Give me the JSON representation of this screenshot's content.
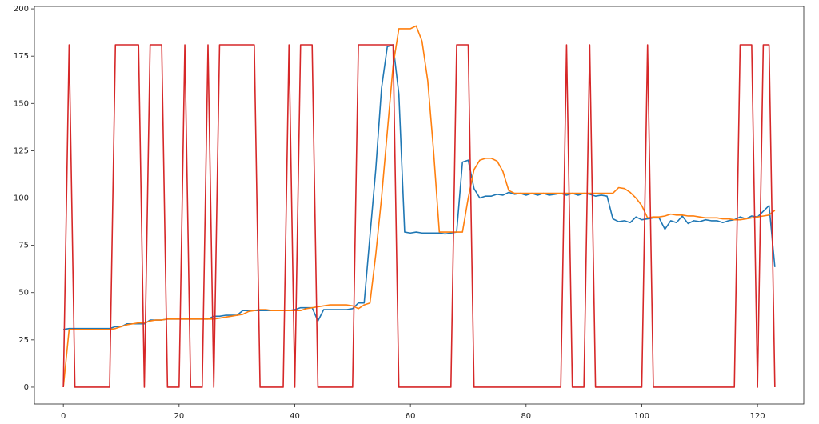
{
  "chart_data": {
    "type": "line",
    "x": [
      0,
      1,
      2,
      3,
      4,
      5,
      6,
      7,
      8,
      9,
      10,
      11,
      12,
      13,
      14,
      15,
      16,
      17,
      18,
      19,
      20,
      21,
      22,
      23,
      24,
      25,
      26,
      27,
      28,
      29,
      30,
      31,
      32,
      33,
      34,
      35,
      36,
      37,
      38,
      39,
      40,
      41,
      42,
      43,
      44,
      45,
      46,
      47,
      48,
      49,
      50,
      51,
      52,
      53,
      54,
      55,
      56,
      57,
      58,
      59,
      60,
      61,
      62,
      63,
      64,
      65,
      66,
      67,
      68,
      69,
      70,
      71,
      72,
      73,
      74,
      75,
      76,
      77,
      78,
      79,
      80,
      81,
      82,
      83,
      84,
      85,
      86,
      87,
      88,
      89,
      90,
      91,
      92,
      93,
      94,
      95,
      96,
      97,
      98,
      99,
      100,
      101,
      102,
      103,
      104,
      105,
      106,
      107,
      108,
      109,
      110,
      111,
      112,
      113,
      114,
      115,
      116,
      117,
      118,
      119,
      120,
      121,
      122,
      123
    ],
    "series": [
      {
        "color": "#1f77b4",
        "values": [
          30.5,
          31,
          31,
          31,
          31,
          31,
          31,
          31,
          31,
          32,
          32,
          33.5,
          33.5,
          33.5,
          33.5,
          35.5,
          35.5,
          35.5,
          36,
          36,
          36,
          36,
          36,
          36,
          36,
          36,
          37.5,
          37.5,
          38,
          38,
          38,
          40.5,
          40.5,
          40.5,
          40.5,
          40.5,
          40.5,
          40.5,
          40.5,
          40.5,
          41,
          42,
          42,
          42,
          35,
          41,
          41,
          41,
          41,
          41,
          41.5,
          44.5,
          44.5,
          80,
          115,
          158,
          180,
          181,
          155,
          82,
          81.5,
          82,
          81.5,
          81.5,
          81.5,
          81.5,
          81,
          81.5,
          82,
          119,
          120,
          105,
          100,
          101,
          101,
          102,
          101.5,
          103,
          102,
          102.5,
          101.5,
          102.5,
          101.5,
          102.5,
          101.5,
          102,
          102.5,
          101.5,
          102.5,
          101.5,
          102.5,
          102,
          101,
          101.5,
          101,
          89,
          87.5,
          88,
          87,
          90,
          88.5,
          89,
          89.5,
          89.5,
          83.5,
          88,
          87,
          90.5,
          86.5,
          88,
          87.5,
          88.5,
          88,
          88,
          87,
          88,
          88.5,
          90,
          89,
          90.5,
          90,
          93,
          96,
          63.5
        ]
      },
      {
        "color": "#ff7f0e",
        "values": [
          0,
          30.5,
          30.5,
          30.5,
          30.5,
          30.5,
          30.5,
          30.5,
          30.5,
          31,
          32,
          33,
          33.5,
          34,
          34,
          35,
          35.5,
          35.5,
          36,
          36,
          36,
          36,
          36,
          36,
          36,
          36,
          36,
          36.5,
          37,
          37.5,
          38,
          38.5,
          40,
          40.5,
          41,
          41,
          40.5,
          40.5,
          40.5,
          40.5,
          40.5,
          40.5,
          41.5,
          42,
          42.5,
          43,
          43.5,
          43.5,
          43.5,
          43.5,
          43,
          41.5,
          43.5,
          44.5,
          70,
          100,
          135,
          170,
          189.5,
          189.5,
          189.5,
          191,
          183,
          162,
          125,
          82,
          82,
          82,
          82,
          82,
          100,
          115,
          120,
          121,
          121,
          119.5,
          114,
          104,
          102.5,
          102.5,
          102.5,
          102.5,
          102.5,
          102.5,
          102.5,
          102.5,
          102.5,
          102.5,
          102.5,
          102.5,
          102.5,
          102.5,
          102.5,
          102.5,
          102.5,
          102.5,
          105.5,
          105,
          103,
          100,
          96,
          89.5,
          90,
          90,
          90.5,
          91.5,
          91,
          91,
          90.5,
          90.5,
          90,
          89.5,
          89.5,
          89.5,
          89,
          89,
          88.5,
          88.5,
          89,
          89.5,
          90,
          90.5,
          91,
          93.5
        ]
      },
      {
        "color": "#d62728",
        "values": [
          0,
          181,
          0,
          0,
          0,
          0,
          0,
          0,
          0,
          181,
          181,
          181,
          181,
          181,
          0,
          181,
          181,
          181,
          0,
          0,
          0,
          181,
          0,
          0,
          0,
          181,
          0,
          181,
          181,
          181,
          181,
          181,
          181,
          181,
          0,
          0,
          0,
          0,
          0,
          181,
          0,
          181,
          181,
          181,
          0,
          0,
          0,
          0,
          0,
          0,
          0,
          181,
          181,
          181,
          181,
          181,
          181,
          181,
          0,
          0,
          0,
          0,
          0,
          0,
          0,
          0,
          0,
          0,
          181,
          181,
          181,
          0,
          0,
          0,
          0,
          0,
          0,
          0,
          0,
          0,
          0,
          0,
          0,
          0,
          0,
          0,
          0,
          181,
          0,
          0,
          0,
          181,
          0,
          0,
          0,
          0,
          0,
          0,
          0,
          0,
          0,
          181,
          0,
          0,
          0,
          0,
          0,
          0,
          0,
          0,
          0,
          0,
          0,
          0,
          0,
          0,
          0,
          181,
          181,
          181,
          0,
          181,
          181,
          0
        ]
      }
    ],
    "xlim": [
      -5,
      128
    ],
    "xticks": [
      0,
      20,
      40,
      60,
      80,
      100,
      120
    ],
    "ylim": [
      -8.9,
      201.3
    ],
    "yticks": [
      0,
      25,
      50,
      75,
      100,
      125,
      150,
      175,
      200
    ]
  }
}
